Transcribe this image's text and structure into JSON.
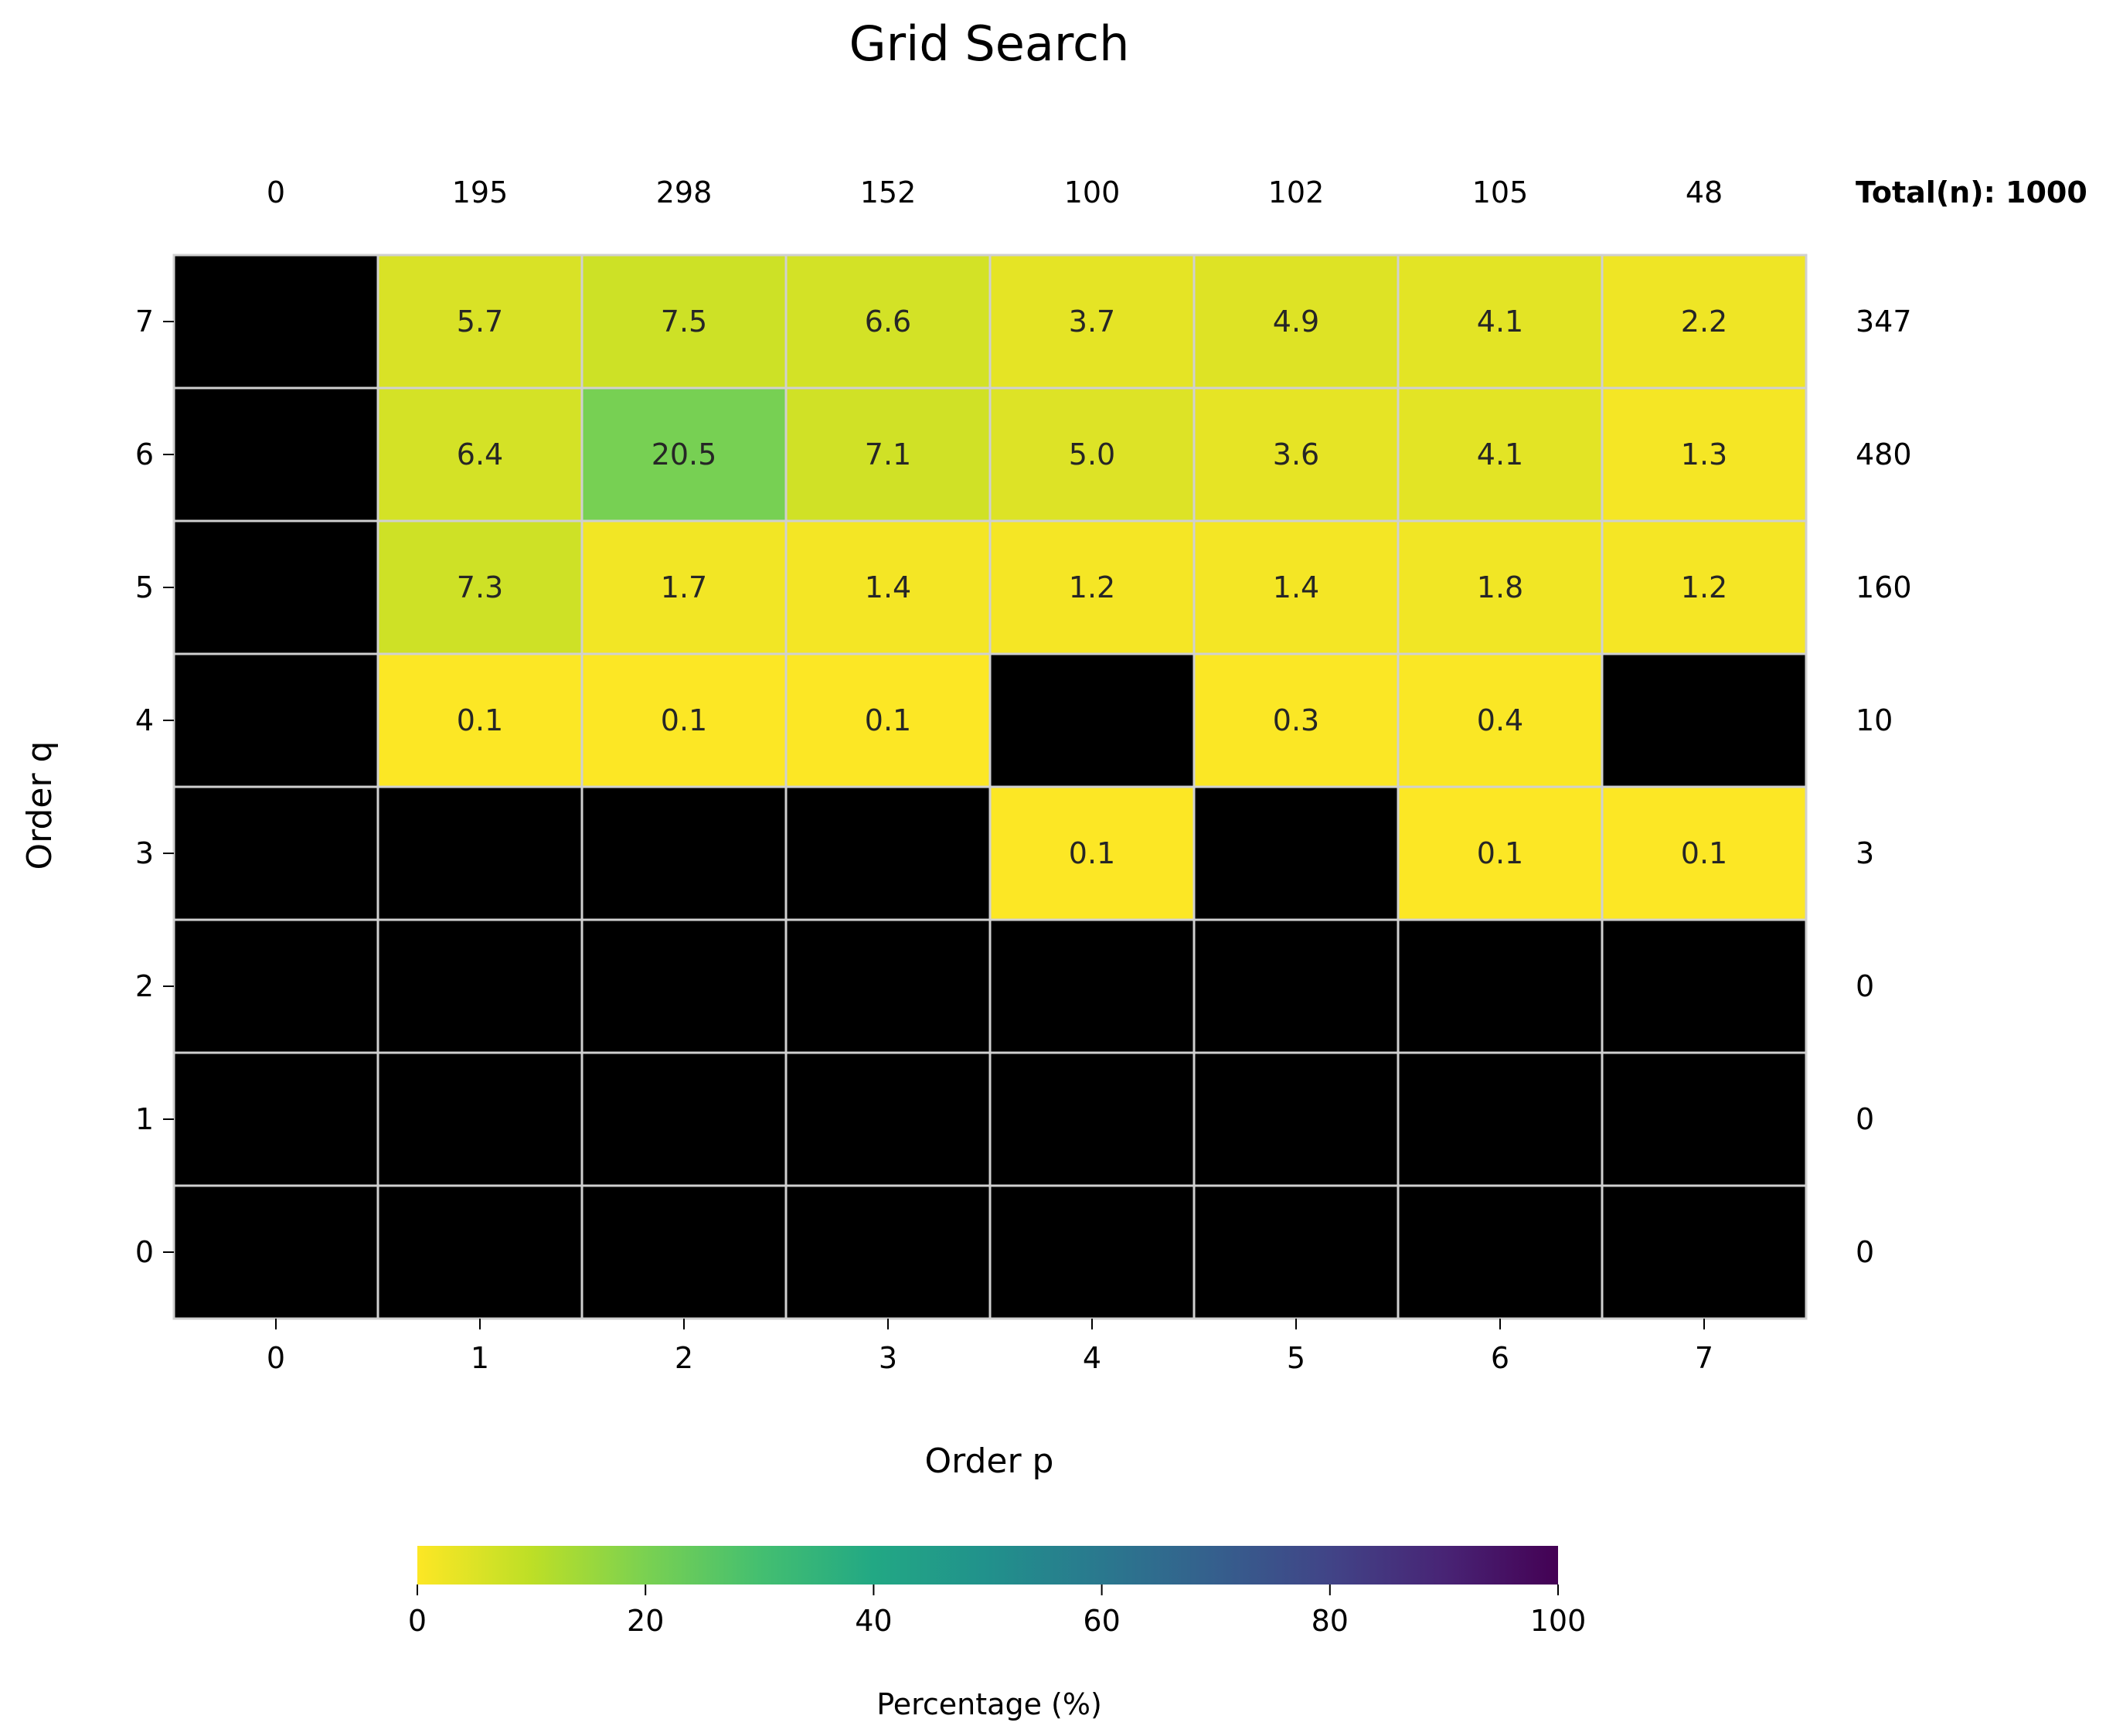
{
  "chart_data": {
    "type": "heatmap",
    "title": "Grid Search",
    "xlabel": "Order p",
    "ylabel": "Order q",
    "x_categories": [
      "0",
      "1",
      "2",
      "3",
      "4",
      "5",
      "6",
      "7"
    ],
    "y_categories": [
      "7",
      "6",
      "5",
      "4",
      "3",
      "2",
      "1",
      "0"
    ],
    "values": [
      [
        null,
        5.7,
        7.5,
        6.6,
        3.7,
        4.9,
        4.1,
        2.2
      ],
      [
        null,
        6.4,
        20.5,
        7.1,
        5.0,
        3.6,
        4.1,
        1.3
      ],
      [
        null,
        7.3,
        1.7,
        1.4,
        1.2,
        1.4,
        1.8,
        1.2
      ],
      [
        null,
        0.1,
        0.1,
        0.1,
        null,
        0.3,
        0.4,
        null
      ],
      [
        null,
        null,
        null,
        null,
        0.1,
        null,
        0.1,
        0.1
      ],
      [
        null,
        null,
        null,
        null,
        null,
        null,
        null,
        null
      ],
      [
        null,
        null,
        null,
        null,
        null,
        null,
        null,
        null
      ],
      [
        null,
        null,
        null,
        null,
        null,
        null,
        null,
        null
      ]
    ],
    "column_totals": [
      "0",
      "195",
      "298",
      "152",
      "100",
      "102",
      "105",
      "48"
    ],
    "row_totals": [
      "347",
      "480",
      "160",
      "10",
      "3",
      "0",
      "0",
      "0"
    ],
    "total_label": "Total(n): 1000",
    "colorbar": {
      "label": "Percentage (%)",
      "min": 0,
      "max": 100,
      "ticks": [
        "0",
        "20",
        "40",
        "60",
        "80",
        "100"
      ],
      "colormap": "viridis_r"
    },
    "colors": {
      "empty_cell": "#000000",
      "grid_line": "#d0d0d0"
    }
  }
}
